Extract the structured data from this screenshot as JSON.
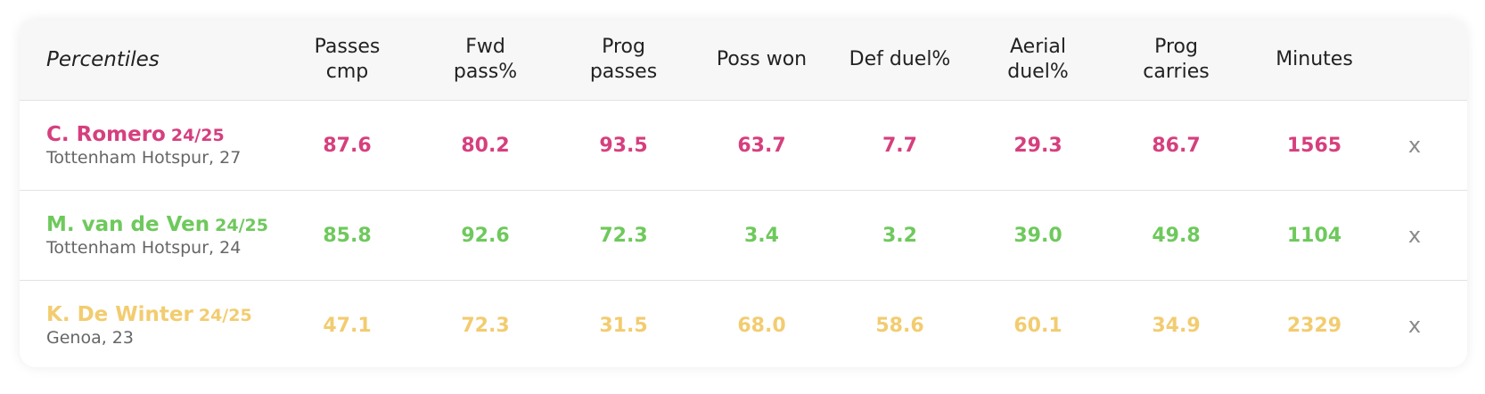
{
  "header": {
    "title": "Percentiles",
    "columns": [
      "Passes\ncmp",
      "Fwd\npass%",
      "Prog\npasses",
      "Poss won",
      "Def duel%",
      "Aerial\nduel%",
      "Prog\ncarries",
      "Minutes"
    ]
  },
  "players": [
    {
      "name": "C. Romero",
      "season": "24/25",
      "team_age": "Tottenham Hotspur, 27",
      "color": "#d63f7e",
      "values": [
        "87.6",
        "80.2",
        "93.5",
        "63.7",
        "7.7",
        "29.3",
        "86.7",
        "1565"
      ],
      "remove_label": "x"
    },
    {
      "name": "M. van de Ven",
      "season": "24/25",
      "team_age": "Tottenham Hotspur, 24",
      "color": "#6ec95c",
      "values": [
        "85.8",
        "92.6",
        "72.3",
        "3.4",
        "3.2",
        "39.0",
        "49.8",
        "1104"
      ],
      "remove_label": "x"
    },
    {
      "name": "K. De Winter",
      "season": "24/25",
      "team_age": "Genoa, 23",
      "color": "#f2cc70",
      "values": [
        "47.1",
        "72.3",
        "31.5",
        "68.0",
        "58.6",
        "60.1",
        "34.9",
        "2329"
      ],
      "remove_label": "x"
    }
  ]
}
